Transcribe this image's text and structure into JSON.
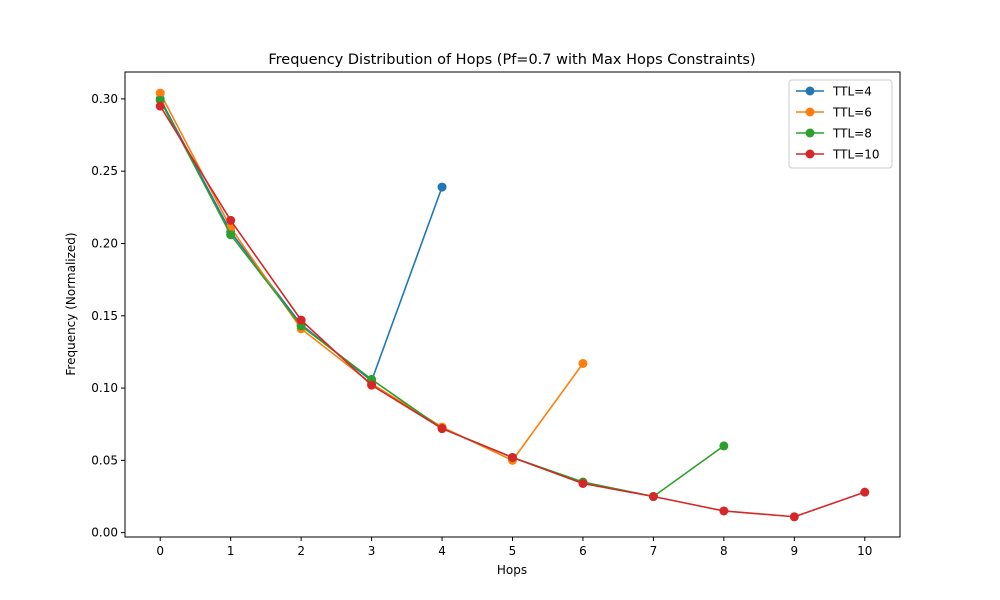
{
  "chart_data": {
    "type": "line",
    "title": "Frequency Distribution of Hops (Pf=0.7 with Max Hops Constraints)",
    "xlabel": "Hops",
    "ylabel": "Frequency (Normalized)",
    "x_ticks": [
      "0",
      "1",
      "2",
      "3",
      "4",
      "5",
      "6",
      "7",
      "8",
      "9",
      "10"
    ],
    "y_ticks": [
      "0.00",
      "0.05",
      "0.10",
      "0.15",
      "0.20",
      "0.25",
      "0.30"
    ],
    "xlim": [
      -0.5,
      10.5
    ],
    "ylim": [
      -0.003,
      0.3186
    ],
    "grid": false,
    "legend_position": "top-right",
    "series": [
      {
        "name": "TTL=4",
        "color": "#1f77b4",
        "x": [
          0,
          1,
          2,
          3,
          4
        ],
        "y": [
          0.3,
          0.208,
          0.144,
          0.105,
          0.239
        ]
      },
      {
        "name": "TTL=6",
        "color": "#ff7f0e",
        "x": [
          0,
          1,
          2,
          3,
          4,
          5,
          6
        ],
        "y": [
          0.304,
          0.211,
          0.141,
          0.103,
          0.073,
          0.05,
          0.117
        ]
      },
      {
        "name": "TTL=8",
        "color": "#2ca02c",
        "x": [
          0,
          1,
          2,
          3,
          4,
          5,
          6,
          7,
          8
        ],
        "y": [
          0.299,
          0.206,
          0.143,
          0.106,
          0.072,
          0.052,
          0.035,
          0.025,
          0.06
        ]
      },
      {
        "name": "TTL=10",
        "color": "#d62728",
        "x": [
          0,
          1,
          2,
          3,
          4,
          5,
          6,
          7,
          8,
          9,
          10
        ],
        "y": [
          0.295,
          0.216,
          0.147,
          0.102,
          0.072,
          0.052,
          0.034,
          0.025,
          0.015,
          0.011,
          0.028
        ]
      }
    ]
  }
}
